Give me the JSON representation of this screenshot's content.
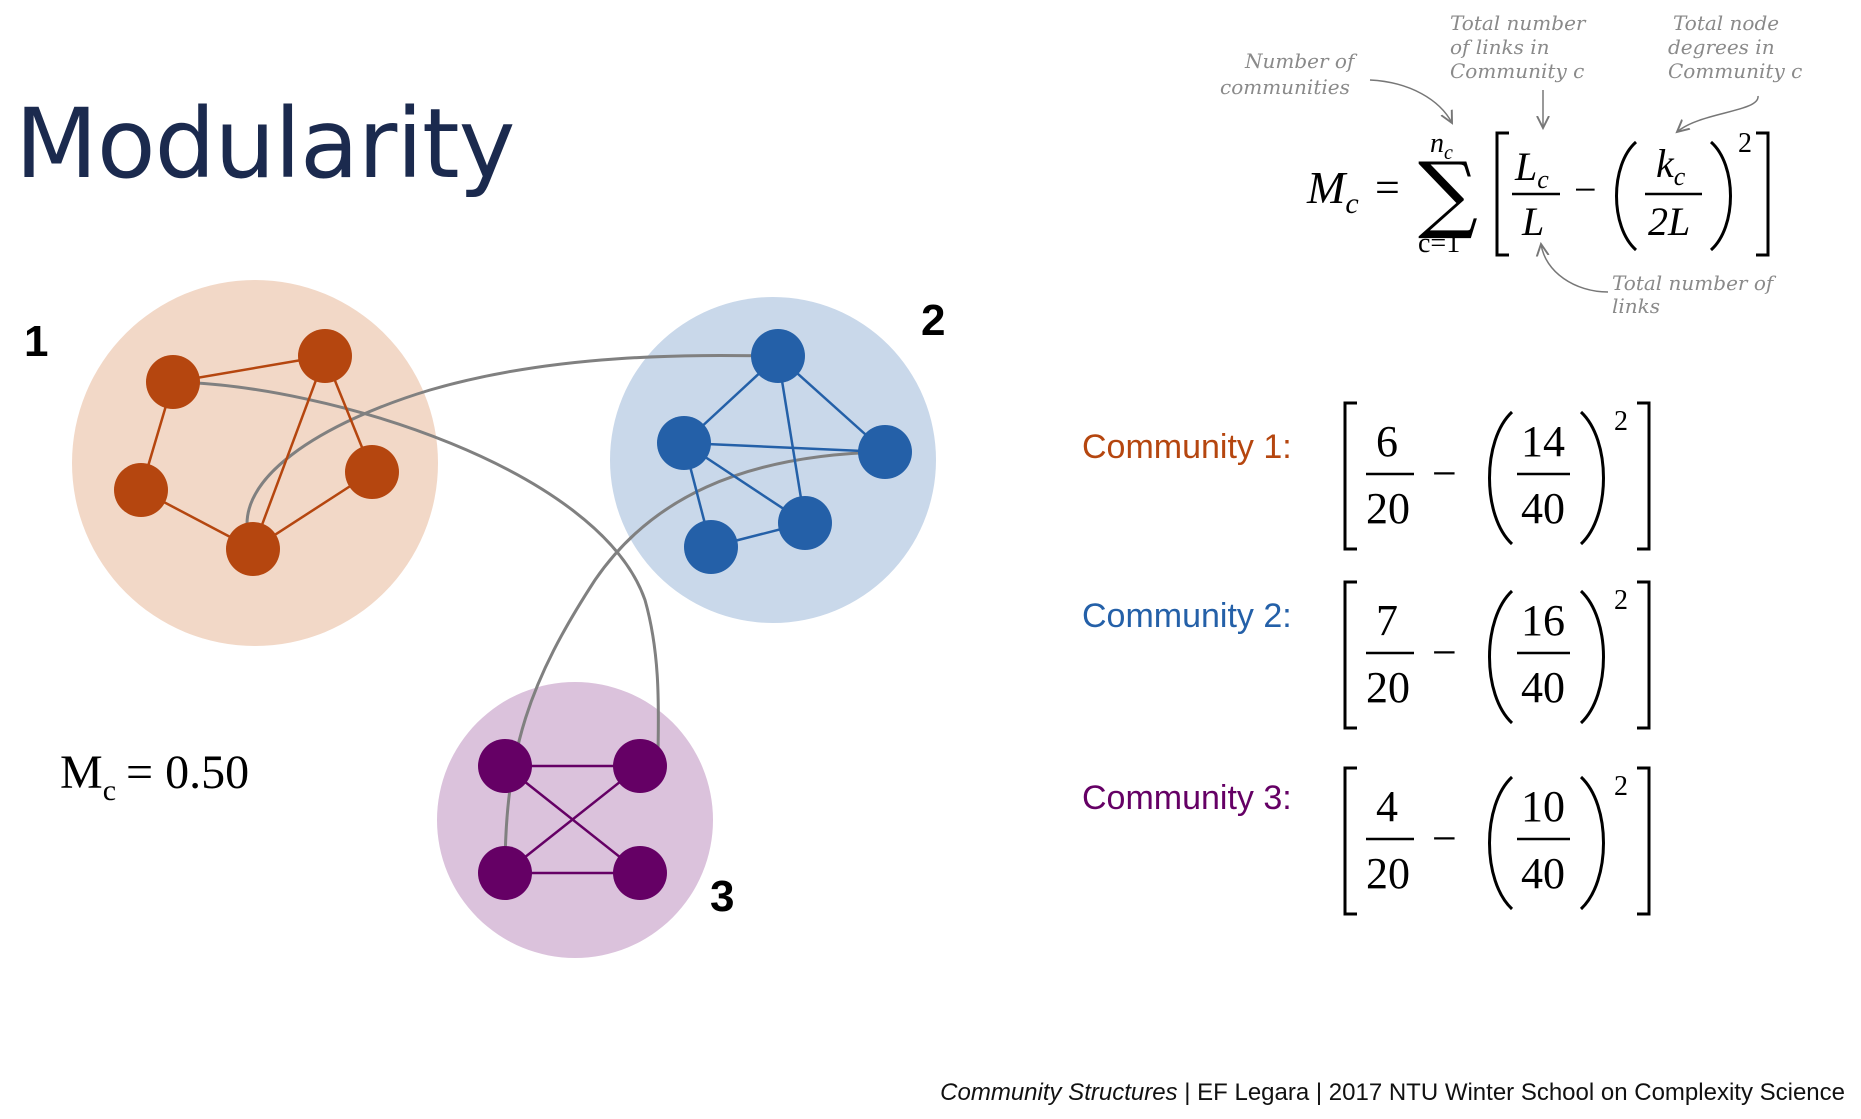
{
  "slide": {
    "title": "Modularity",
    "footer_italic": "Community Structures",
    "footer_rest": " | EF Legara | 2017 NTU Winter School on Complexity Science"
  },
  "graph": {
    "community_labels": [
      "1",
      "2",
      "3"
    ],
    "modularity_symbol": "M",
    "modularity_subscript": "c",
    "modularity_value": "= 0.50",
    "colors": {
      "c1_node": "#b5460f",
      "c1_bg": "#f2d8c7",
      "c2_node": "#2460a8",
      "c2_bg": "#c9d8ea",
      "c3_node": "#650065",
      "c3_bg": "#dbc2dc",
      "inter_edge": "#808080"
    }
  },
  "formula": {
    "lhs_symbol": "M",
    "lhs_sub": "c",
    "eq": "=",
    "sum_upper": "n",
    "sum_upper_sub": "c",
    "sum_lower": "c=1",
    "frac1_num": "L",
    "frac1_num_sub": "c",
    "frac1_den": "L",
    "minus": "−",
    "frac2_num": "k",
    "frac2_num_sub": "c",
    "frac2_den": "2L",
    "exponent": "2",
    "notes": {
      "communities": [
        "Number of",
        "communities"
      ],
      "links_in_c": [
        "Total number",
        "of links in",
        "Community c"
      ],
      "degrees_in_c": [
        "Total node",
        "degrees in",
        "Community c"
      ],
      "total_links": [
        "Total number of",
        "links"
      ]
    }
  },
  "communities": [
    {
      "label": "Community 1:",
      "color": "#b5460f",
      "links": "6",
      "total": "20",
      "degrees": "14",
      "double_total": "40",
      "exponent": "2"
    },
    {
      "label": "Community 2:",
      "color": "#2460a8",
      "links": "7",
      "total": "20",
      "degrees": "16",
      "double_total": "40",
      "exponent": "2"
    },
    {
      "label": "Community 3:",
      "color": "#650065",
      "links": "4",
      "total": "20",
      "degrees": "10",
      "double_total": "40",
      "exponent": "2"
    }
  ]
}
